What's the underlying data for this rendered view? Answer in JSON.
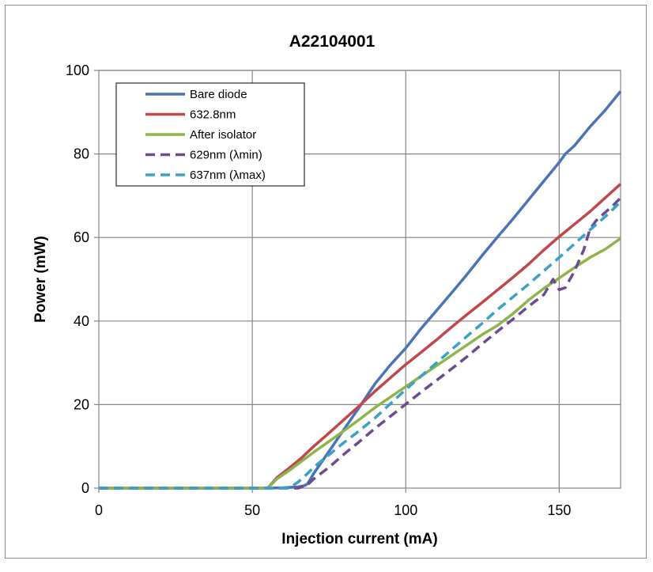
{
  "chart_data": {
    "type": "line",
    "title": "A22104001",
    "xlabel": "Injection current (mA)",
    "ylabel": "Power (mW)",
    "xlim": [
      0,
      170
    ],
    "ylim": [
      0,
      100
    ],
    "xticks": [
      0,
      50,
      100,
      150
    ],
    "yticks": [
      0,
      20,
      40,
      60,
      80,
      100
    ],
    "grid": true,
    "legend_position": "top-left",
    "series": [
      {
        "name": "Bare diode",
        "color": "#4a74b6",
        "style": "solid",
        "x": [
          0,
          55,
          60,
          65,
          67,
          68,
          70,
          75,
          80,
          85,
          90,
          95,
          100,
          105,
          110,
          115,
          120,
          125,
          130,
          135,
          140,
          145,
          150,
          152,
          155,
          160,
          165,
          170
        ],
        "y": [
          0,
          0,
          0.1,
          0.3,
          0.6,
          1.0,
          3.5,
          8.8,
          14.2,
          19.5,
          25.0,
          29.5,
          33.5,
          38.2,
          42.5,
          46.8,
          51.2,
          55.8,
          60.2,
          64.5,
          69.0,
          73.5,
          78.0,
          80.0,
          82.0,
          86.5,
          90.5,
          95.0
        ]
      },
      {
        "name": "632.8nm",
        "color": "#c0474a",
        "style": "solid",
        "x": [
          0,
          55,
          58,
          62,
          66,
          70,
          75,
          80,
          85,
          90,
          95,
          100,
          105,
          110,
          115,
          120,
          125,
          130,
          135,
          140,
          145,
          150,
          155,
          160,
          165,
          170
        ],
        "y": [
          0,
          0,
          2.5,
          4.8,
          7.2,
          10.0,
          13.2,
          16.5,
          19.8,
          23.2,
          26.4,
          29.6,
          32.5,
          35.5,
          38.6,
          41.6,
          44.5,
          47.5,
          50.5,
          53.6,
          57.0,
          60.2,
          63.2,
          66.2,
          69.5,
          72.8
        ]
      },
      {
        "name": "After isolator",
        "color": "#8db54b",
        "style": "solid",
        "x": [
          0,
          55,
          58,
          62,
          66,
          70,
          75,
          80,
          85,
          90,
          95,
          100,
          105,
          110,
          115,
          120,
          125,
          130,
          135,
          140,
          145,
          150,
          155,
          160,
          165,
          170
        ],
        "y": [
          0,
          0,
          2.2,
          4.2,
          6.4,
          8.6,
          11.2,
          13.8,
          16.5,
          19.3,
          21.8,
          24.3,
          26.8,
          29.3,
          31.8,
          34.3,
          36.8,
          39.0,
          41.8,
          45.0,
          47.8,
          50.3,
          52.8,
          55.2,
          57.2,
          59.8
        ]
      },
      {
        "name": "629nm (λmin)",
        "color": "#6a4d8f",
        "style": "dashed",
        "x": [
          0,
          65,
          68,
          70,
          75,
          80,
          85,
          90,
          95,
          100,
          105,
          110,
          115,
          120,
          125,
          130,
          135,
          140,
          145,
          148,
          150,
          152,
          155,
          158,
          160,
          162,
          165,
          168,
          170
        ],
        "y": [
          0,
          0,
          0.8,
          2.2,
          5.0,
          8.2,
          11.2,
          14.3,
          17.2,
          20.1,
          23.0,
          25.8,
          28.6,
          31.5,
          34.6,
          37.6,
          40.5,
          43.5,
          46.3,
          50.0,
          47.5,
          48.0,
          52.0,
          57.0,
          62.0,
          64.0,
          66.0,
          68.0,
          69.5
        ]
      },
      {
        "name": "637nm (λmax)",
        "color": "#3aa2c4",
        "style": "dashed",
        "x": [
          0,
          62,
          65,
          68,
          70,
          75,
          80,
          85,
          90,
          95,
          100,
          105,
          110,
          115,
          120,
          125,
          130,
          135,
          140,
          145,
          150,
          155,
          160,
          165,
          170
        ],
        "y": [
          0,
          0,
          1.5,
          3.5,
          5.0,
          8.0,
          11.0,
          13.8,
          16.8,
          20.2,
          23.6,
          26.8,
          30.0,
          33.2,
          36.4,
          39.5,
          42.8,
          45.8,
          48.8,
          52.0,
          55.2,
          58.5,
          61.8,
          65.0,
          68.5
        ]
      }
    ]
  }
}
